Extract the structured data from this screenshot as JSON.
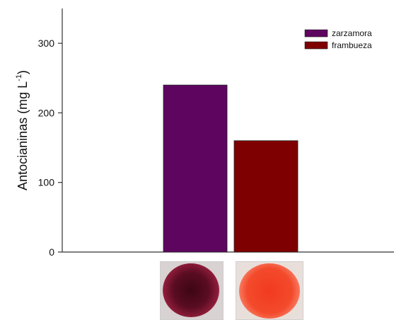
{
  "chart_data": {
    "type": "bar",
    "categories": [
      "zarzamora",
      "frambueza"
    ],
    "series": [
      {
        "name": "zarzamora",
        "values": [
          240,
          null
        ],
        "color": "#5e0560"
      },
      {
        "name": "frambueza",
        "values": [
          null,
          160
        ],
        "color": "#7e0000"
      }
    ],
    "values": [
      240,
      160
    ],
    "ylabel": "Antocianinas (mg L",
    "ylabel_superscript": "-1",
    "ylabel_close": ")",
    "ylim": [
      0,
      350
    ],
    "yticks": [
      0,
      100,
      200,
      300
    ],
    "ytick_labels": [
      "0",
      "100",
      "200",
      "300"
    ],
    "grid": false,
    "legend_placement": "top-right",
    "legend": [
      {
        "label": "zarzamora",
        "color": "#5e0560"
      },
      {
        "label": "frambueza",
        "color": "#7e0000"
      }
    ]
  },
  "photos": [
    {
      "name": "zarzamora-sample-photo",
      "colors": [
        "#4a0a1c",
        "#9b1f3a",
        "#c9c3c3"
      ]
    },
    {
      "name": "frambueza-sample-photo",
      "colors": [
        "#f2321c",
        "#f86a4a",
        "#e8dcd6"
      ]
    }
  ]
}
